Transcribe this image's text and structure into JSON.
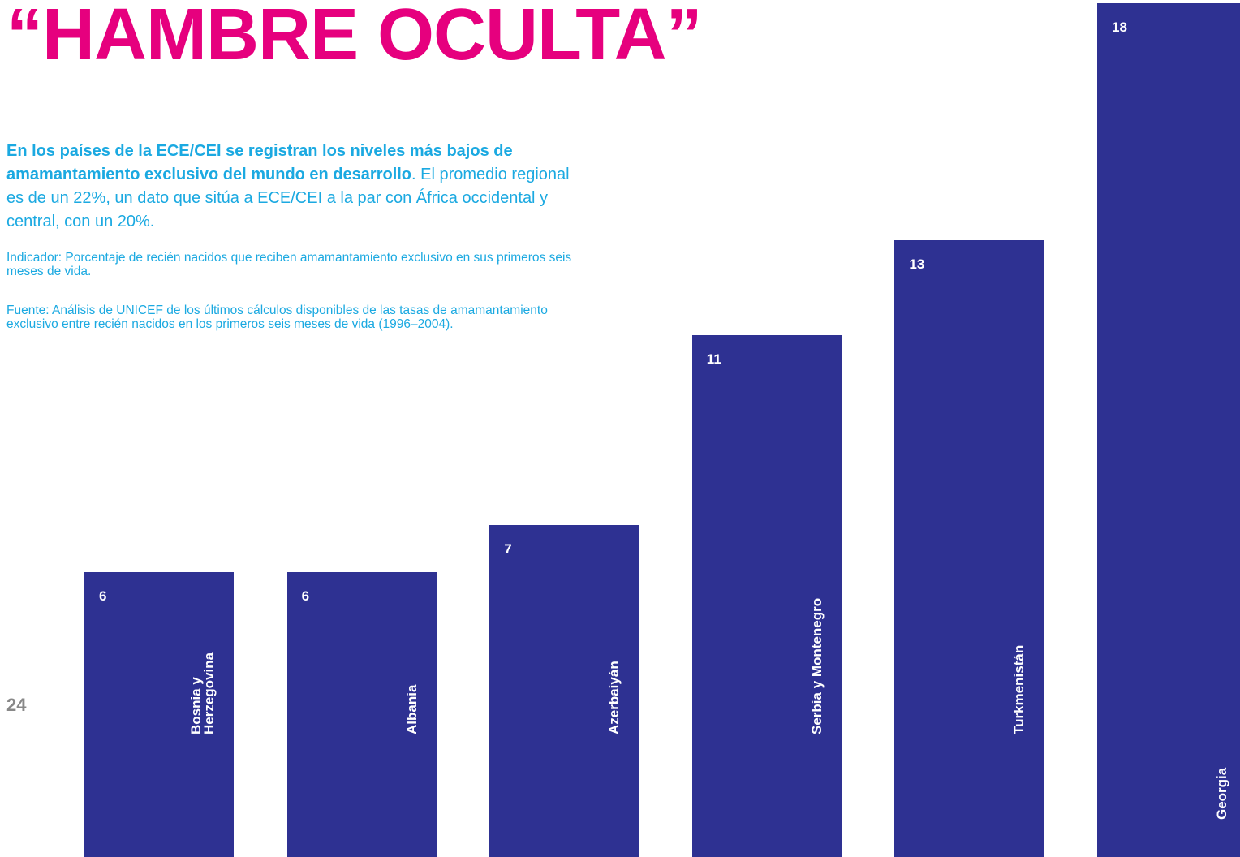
{
  "chart_data": {
    "type": "bar",
    "title": "“HAMBRE OCULTA”",
    "subtitle_bold": "En los países de la ECE/CEI se registran los niveles más bajos de amamantamiento exclusivo del mundo en desarrollo",
    "subtitle": ". El promedio regional es de un 22%, un dato que sitúa a ECE/CEI a la par con África occidental y central, con un 20%.",
    "indicator": "Indicador: Porcentaje de recién nacidos que reciben amamantamiento exclusivo en sus primeros seis meses de vida.",
    "source": "Fuente: Análisis de UNICEF de los últimos cálculos disponibles de las tasas de amamantamiento exclusivo entre recién nacidos en los primeros seis meses de vida (1996–2004).",
    "categories": [
      "Bosnia y\nHerzegovina",
      "Albania",
      "Azerbaiyán",
      "Serbia y Montenegro",
      "Turkmenistán",
      "Georgia"
    ],
    "values": [
      6,
      6,
      7,
      11,
      13,
      18
    ],
    "color": "#2e3192"
  },
  "page_number": "24"
}
